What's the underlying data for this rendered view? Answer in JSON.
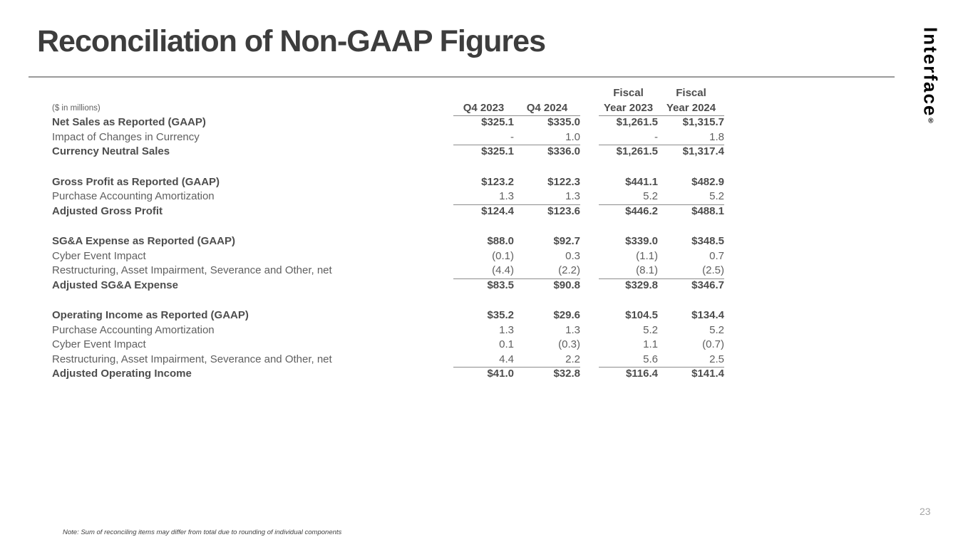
{
  "page": {
    "title": "Reconciliation of Non-GAAP Figures",
    "page_number": "23",
    "note": "Note: Sum of reconciling items may differ from total due to rounding of individual components"
  },
  "logo": {
    "text": "Interface",
    "registered": "®"
  },
  "colors": {
    "title_text": "#3d3d3d",
    "bold_row_text": "#4d4d4d",
    "regular_row_text": "#5f5f5f",
    "table_rule": "#8c8c8c",
    "title_divider": "#9a9a9a",
    "page_number": "#a6a6a6",
    "logo": "#000000",
    "background": "#ffffff"
  },
  "table": {
    "units_label": "($ in millions)",
    "headers": [
      {
        "line1": "",
        "line2": "Q4 2023"
      },
      {
        "line1": "",
        "line2": "Q4 2024"
      },
      {
        "line1": "Fiscal",
        "line2": "Year 2023"
      },
      {
        "line1": "Fiscal",
        "line2": "Year 2024"
      }
    ],
    "sections": [
      {
        "name": "net-sales",
        "rows": [
          {
            "label": "Net Sales as Reported (GAAP)",
            "bold": true,
            "rule_below": false,
            "values": [
              "$325.1",
              "$335.0",
              "$1,261.5",
              "$1,315.7"
            ]
          },
          {
            "label": "Impact of Changes in Currency",
            "bold": false,
            "rule_below": true,
            "values": [
              "-",
              "1.0",
              "-",
              "1.8"
            ]
          },
          {
            "label": "Currency Neutral Sales",
            "bold": true,
            "rule_below": false,
            "values": [
              "$325.1",
              "$336.0",
              "$1,261.5",
              "$1,317.4"
            ]
          }
        ]
      },
      {
        "name": "gross-profit",
        "rows": [
          {
            "label": "Gross Profit as Reported (GAAP)",
            "bold": true,
            "rule_below": false,
            "values": [
              "$123.2",
              "$122.3",
              "$441.1",
              "$482.9"
            ]
          },
          {
            "label": "Purchase Accounting Amortization",
            "bold": false,
            "rule_below": true,
            "values": [
              "1.3",
              "1.3",
              "5.2",
              "5.2"
            ]
          },
          {
            "label": "Adjusted Gross Profit",
            "bold": true,
            "rule_below": false,
            "values": [
              "$124.4",
              "$123.6",
              "$446.2",
              "$488.1"
            ]
          }
        ]
      },
      {
        "name": "sga-expense",
        "rows": [
          {
            "label": "SG&A Expense as Reported (GAAP)",
            "bold": true,
            "rule_below": false,
            "values": [
              "$88.0",
              "$92.7",
              "$339.0",
              "$348.5"
            ]
          },
          {
            "label": "Cyber Event Impact",
            "bold": false,
            "rule_below": false,
            "values": [
              "(0.1)",
              "0.3",
              "(1.1)",
              "0.7"
            ]
          },
          {
            "label": "Restructuring, Asset Impairment, Severance and Other, net",
            "bold": false,
            "rule_below": true,
            "values": [
              "(4.4)",
              "(2.2)",
              "(8.1)",
              "(2.5)"
            ]
          },
          {
            "label": "Adjusted SG&A Expense",
            "bold": true,
            "rule_below": false,
            "values": [
              "$83.5",
              "$90.8",
              "$329.8",
              "$346.7"
            ]
          }
        ]
      },
      {
        "name": "operating-income",
        "rows": [
          {
            "label": "Operating Income as Reported (GAAP)",
            "bold": true,
            "rule_below": false,
            "values": [
              "$35.2",
              "$29.6",
              "$104.5",
              "$134.4"
            ]
          },
          {
            "label": "Purchase Accounting Amortization",
            "bold": false,
            "rule_below": false,
            "values": [
              "1.3",
              "1.3",
              "5.2",
              "5.2"
            ]
          },
          {
            "label": "Cyber Event Impact",
            "bold": false,
            "rule_below": false,
            "values": [
              "0.1",
              "(0.3)",
              "1.1",
              "(0.7)"
            ]
          },
          {
            "label": "Restructuring, Asset Impairment, Severance and Other, net",
            "bold": false,
            "rule_below": true,
            "values": [
              "4.4",
              "2.2",
              "5.6",
              "2.5"
            ]
          },
          {
            "label": "Adjusted Operating Income",
            "bold": true,
            "rule_below": false,
            "values": [
              "$41.0",
              "$32.8",
              "$116.4",
              "$141.4"
            ]
          }
        ]
      }
    ]
  }
}
